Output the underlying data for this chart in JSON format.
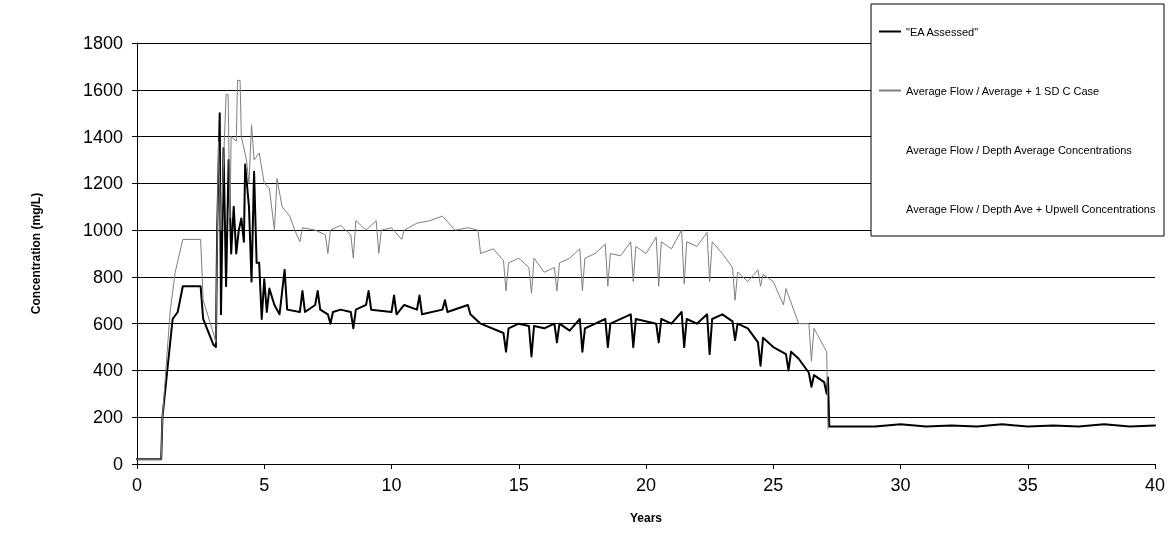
{
  "chart_data": {
    "type": "line",
    "xlabel": "Years",
    "ylabel": "Concentration (mg/L)",
    "xlim": [
      0,
      40
    ],
    "xticks": [
      0,
      5,
      10,
      15,
      20,
      25,
      30,
      35,
      40
    ],
    "ylim": [
      0,
      1800
    ],
    "yticks": [
      0,
      200,
      400,
      600,
      800,
      1000,
      1200,
      1400,
      1600,
      1800
    ],
    "grid": "y",
    "legend": "top right",
    "marker": "none",
    "series": [
      {
        "name": "\"EA Assessed\"",
        "color": "#000000",
        "line_style": "solid",
        "x": [
          0,
          0.95,
          1.0,
          1.4,
          1.6,
          1.8,
          2.5,
          2.6,
          3.0,
          3.1,
          3.15,
          3.25,
          3.3,
          3.4,
          3.5,
          3.6,
          3.7,
          3.8,
          3.9,
          4.0,
          4.1,
          4.2,
          4.25,
          4.4,
          4.5,
          4.6,
          4.7,
          4.8,
          4.9,
          5.0,
          5.1,
          5.2,
          5.4,
          5.6,
          5.8,
          5.9,
          6.4,
          6.5,
          6.6,
          7.0,
          7.1,
          7.2,
          7.5,
          7.6,
          7.7,
          8.0,
          8.4,
          8.5,
          8.6,
          9.0,
          9.1,
          9.2,
          10.0,
          10.1,
          10.2,
          10.5,
          11.0,
          11.1,
          11.2,
          12.0,
          12.1,
          12.2,
          13.0,
          13.1,
          13.5,
          14.4,
          14.5,
          14.6,
          15.0,
          15.4,
          15.5,
          15.6,
          16.0,
          16.4,
          16.5,
          16.6,
          17.0,
          17.4,
          17.5,
          17.6,
          18.4,
          18.5,
          18.6,
          19.4,
          19.5,
          19.6,
          20.4,
          20.5,
          20.6,
          21.0,
          21.4,
          21.5,
          21.6,
          22.0,
          22.4,
          22.5,
          22.6,
          23.0,
          23.4,
          23.5,
          23.6,
          24.0,
          24.4,
          24.5,
          24.6,
          25.0,
          25.5,
          25.6,
          25.7,
          26.0,
          26.4,
          26.5,
          26.6,
          27.0,
          27.1,
          27.15,
          27.2,
          28,
          29,
          30,
          31,
          32,
          33,
          34,
          35,
          36,
          37,
          38,
          39,
          40
        ],
        "values": [
          20,
          20,
          200,
          620,
          650,
          760,
          760,
          620,
          510,
          500,
          1000,
          1500,
          640,
          1350,
          760,
          1300,
          900,
          1100,
          900,
          1000,
          1050,
          950,
          1280,
          1100,
          780,
          1250,
          860,
          860,
          620,
          790,
          650,
          750,
          680,
          640,
          830,
          660,
          650,
          740,
          650,
          680,
          740,
          660,
          640,
          600,
          650,
          660,
          650,
          580,
          660,
          680,
          740,
          660,
          650,
          720,
          640,
          680,
          660,
          720,
          640,
          660,
          700,
          650,
          680,
          640,
          600,
          560,
          480,
          580,
          600,
          590,
          460,
          590,
          580,
          600,
          520,
          600,
          570,
          620,
          480,
          580,
          620,
          500,
          600,
          640,
          500,
          620,
          600,
          520,
          620,
          600,
          650,
          500,
          620,
          600,
          640,
          470,
          620,
          640,
          610,
          530,
          600,
          580,
          520,
          420,
          540,
          500,
          470,
          400,
          480,
          450,
          390,
          330,
          380,
          350,
          300,
          370,
          160,
          160,
          160,
          170,
          160,
          165,
          160,
          170,
          160,
          165,
          160,
          170,
          160,
          165
        ]
      },
      {
        "name": "Average Flow / Average + 1 SD C Case",
        "color": "#7f7f7f",
        "line_style": "solid",
        "x": [
          0,
          0.95,
          1.0,
          1.3,
          1.5,
          1.8,
          2.5,
          2.6,
          3.0,
          3.1,
          3.2,
          3.3,
          3.5,
          3.58,
          3.65,
          3.7,
          3.9,
          3.95,
          4.05,
          4.1,
          4.3,
          4.4,
          4.5,
          4.6,
          4.8,
          5.0,
          5.2,
          5.4,
          5.5,
          5.7,
          6.0,
          6.2,
          6.4,
          6.5,
          7.0,
          7.4,
          7.5,
          7.6,
          8.0,
          8.4,
          8.5,
          8.6,
          9.0,
          9.4,
          9.5,
          9.6,
          10.0,
          10.4,
          10.5,
          11.0,
          11.5,
          12.0,
          12.5,
          13.0,
          13.4,
          13.5,
          14.0,
          14.4,
          14.5,
          14.6,
          15.0,
          15.4,
          15.5,
          15.6,
          16.0,
          16.4,
          16.5,
          16.6,
          17.0,
          17.4,
          17.5,
          17.6,
          18.0,
          18.4,
          18.5,
          18.6,
          19.0,
          19.4,
          19.5,
          19.6,
          20.0,
          20.4,
          20.5,
          20.6,
          21.0,
          21.4,
          21.5,
          21.6,
          22.0,
          22.4,
          22.5,
          22.6,
          23.0,
          23.4,
          23.5,
          23.6,
          24.0,
          24.4,
          24.5,
          24.6,
          25.0,
          25.4,
          25.5,
          25.6,
          26.0,
          26.4,
          26.5,
          26.6,
          27.0,
          27.1,
          27.15
        ],
        "values": [
          20,
          20,
          200,
          650,
          820,
          960,
          960,
          700,
          560,
          520,
          1380,
          1000,
          1580,
          1580,
          1050,
          1400,
          1380,
          1640,
          1640,
          1400,
          1300,
          1200,
          1450,
          1300,
          1330,
          1200,
          1180,
          1000,
          1220,
          1100,
          1060,
          1000,
          950,
          1010,
          1000,
          980,
          900,
          1000,
          1020,
          980,
          880,
          1040,
          1000,
          1040,
          900,
          1000,
          1010,
          960,
          1000,
          1030,
          1040,
          1060,
          1000,
          1010,
          1000,
          900,
          920,
          870,
          740,
          860,
          880,
          840,
          730,
          880,
          820,
          840,
          740,
          860,
          880,
          920,
          740,
          880,
          900,
          940,
          760,
          900,
          890,
          950,
          780,
          930,
          900,
          970,
          760,
          950,
          920,
          1000,
          770,
          950,
          930,
          990,
          780,
          950,
          900,
          840,
          700,
          820,
          780,
          830,
          760,
          810,
          780,
          680,
          750,
          720,
          600,
          600,
          440,
          580,
          500,
          480,
          150
        ]
      },
      {
        "name": "Average Flow / Depth Average Concentrations"
      },
      {
        "name": "Average Flow / Depth Ave + Upwell Concentrations"
      }
    ]
  }
}
